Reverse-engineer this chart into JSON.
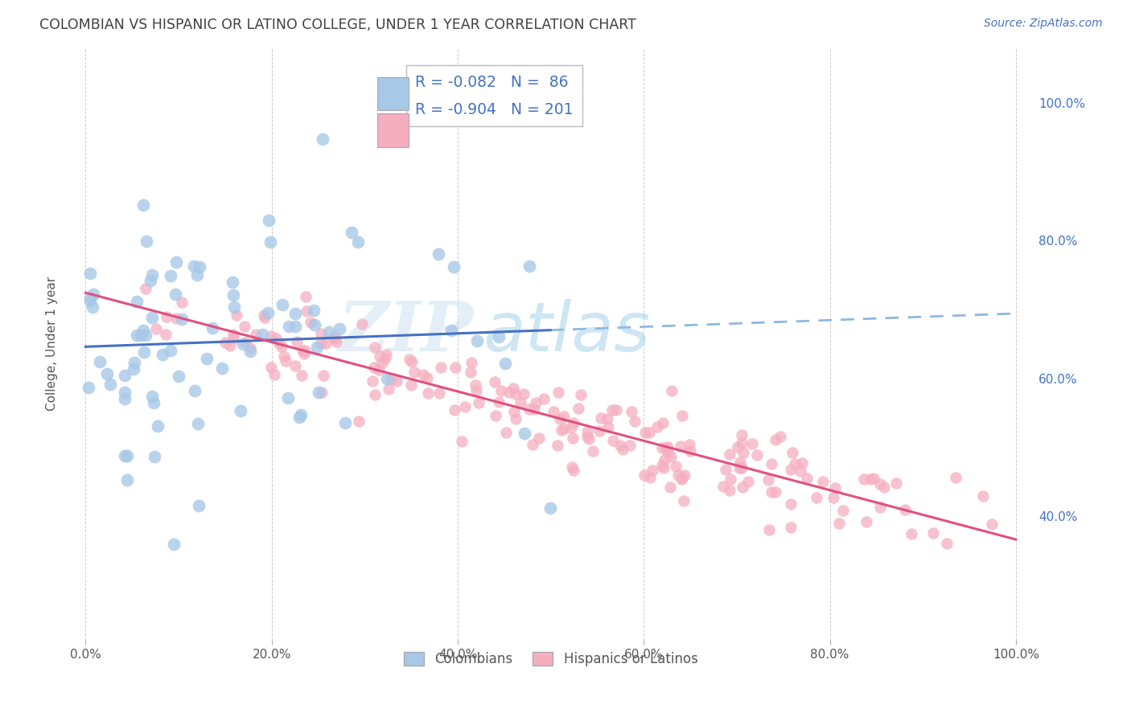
{
  "title": "COLOMBIAN VS HISPANIC OR LATINO COLLEGE, UNDER 1 YEAR CORRELATION CHART",
  "source": "Source: ZipAtlas.com",
  "ylabel": "College, Under 1 year",
  "watermark_zip": "ZIP",
  "watermark_atlas": "atlas",
  "legend_label1": "Colombians",
  "legend_label2": "Hispanics or Latinos",
  "R1": -0.082,
  "N1": 86,
  "R2": -0.904,
  "N2": 201,
  "color1": "#a8c8e8",
  "color2": "#f5aec0",
  "line1_color": "#4472c4",
  "line2_color": "#e05080",
  "dash_color": "#90b8e0",
  "xlim": [
    -0.02,
    1.02
  ],
  "ylim_min": 0.22,
  "ylim_max": 1.08,
  "background_color": "#ffffff",
  "grid_color": "#cccccc",
  "title_color": "#404040",
  "legend_text_color": "#4472c4",
  "right_tick_color": "#4472c4",
  "source_color": "#4472c4"
}
